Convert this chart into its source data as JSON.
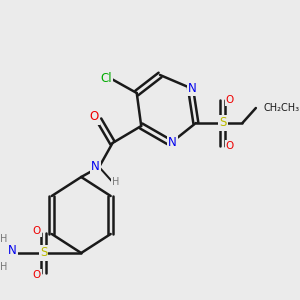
{
  "background_color": "#ebebeb",
  "bond_color": "#1a1a1a",
  "atom_colors": {
    "N": "#0000ee",
    "O": "#ee0000",
    "S": "#bbbb00",
    "Cl": "#00aa00",
    "C": "#1a1a1a",
    "H": "#777777"
  },
  "figsize": [
    3.0,
    3.0
  ],
  "dpi": 100
}
